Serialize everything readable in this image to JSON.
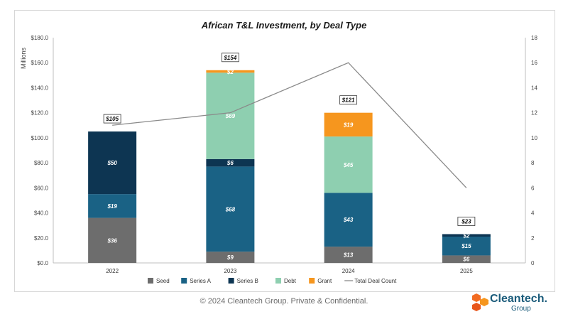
{
  "chart_data": {
    "type": "bar",
    "stacked": true,
    "title": "African T&L Investment, by Deal Type",
    "ylabel": "Millions",
    "ylim": [
      0,
      180
    ],
    "y2lim": [
      0,
      18
    ],
    "y_ticks": [
      "$0.0",
      "$20.0",
      "$40.0",
      "$60.0",
      "$80.0",
      "$100.0",
      "$120.0",
      "$140.0",
      "$160.0",
      "$180.0"
    ],
    "y2_ticks": [
      "0",
      "2",
      "4",
      "6",
      "8",
      "10",
      "12",
      "14",
      "16",
      "18"
    ],
    "categories": [
      "2022",
      "2023",
      "2024",
      "2025"
    ],
    "series": [
      {
        "name": "Seed",
        "color": "#6d6d6d",
        "values": [
          36,
          9,
          13,
          6
        ],
        "labels": [
          "$36",
          "$9",
          "$13",
          "$6"
        ]
      },
      {
        "name": "Series A",
        "color": "#1a6285",
        "values": [
          19,
          68,
          43,
          15
        ],
        "labels": [
          "$19",
          "$68",
          "$43",
          "$15"
        ]
      },
      {
        "name": "Series B",
        "color": "#0d3552",
        "values": [
          50,
          6,
          0,
          2
        ],
        "labels": [
          "$50",
          "$6",
          "",
          "$2"
        ]
      },
      {
        "name": "Debt",
        "color": "#8ecfb0",
        "values": [
          0,
          69,
          45,
          0
        ],
        "labels": [
          "",
          "$69",
          "$45",
          ""
        ]
      },
      {
        "name": "Grant",
        "color": "#f6961e",
        "values": [
          0,
          2,
          19,
          0
        ],
        "labels": [
          "",
          "$2",
          "$19",
          ""
        ]
      }
    ],
    "totals": [
      "$105",
      "$154",
      "$121",
      "$23"
    ],
    "line": {
      "name": "Total Deal Count",
      "color": "#8a8a8a",
      "values": [
        11,
        12,
        16,
        6
      ]
    },
    "legend_position": "bottom",
    "grid": false
  },
  "footer": "© 2024 Cleantech Group. Private & Confidential.",
  "logo": {
    "name": "Cleantech.",
    "sub": "Group"
  }
}
